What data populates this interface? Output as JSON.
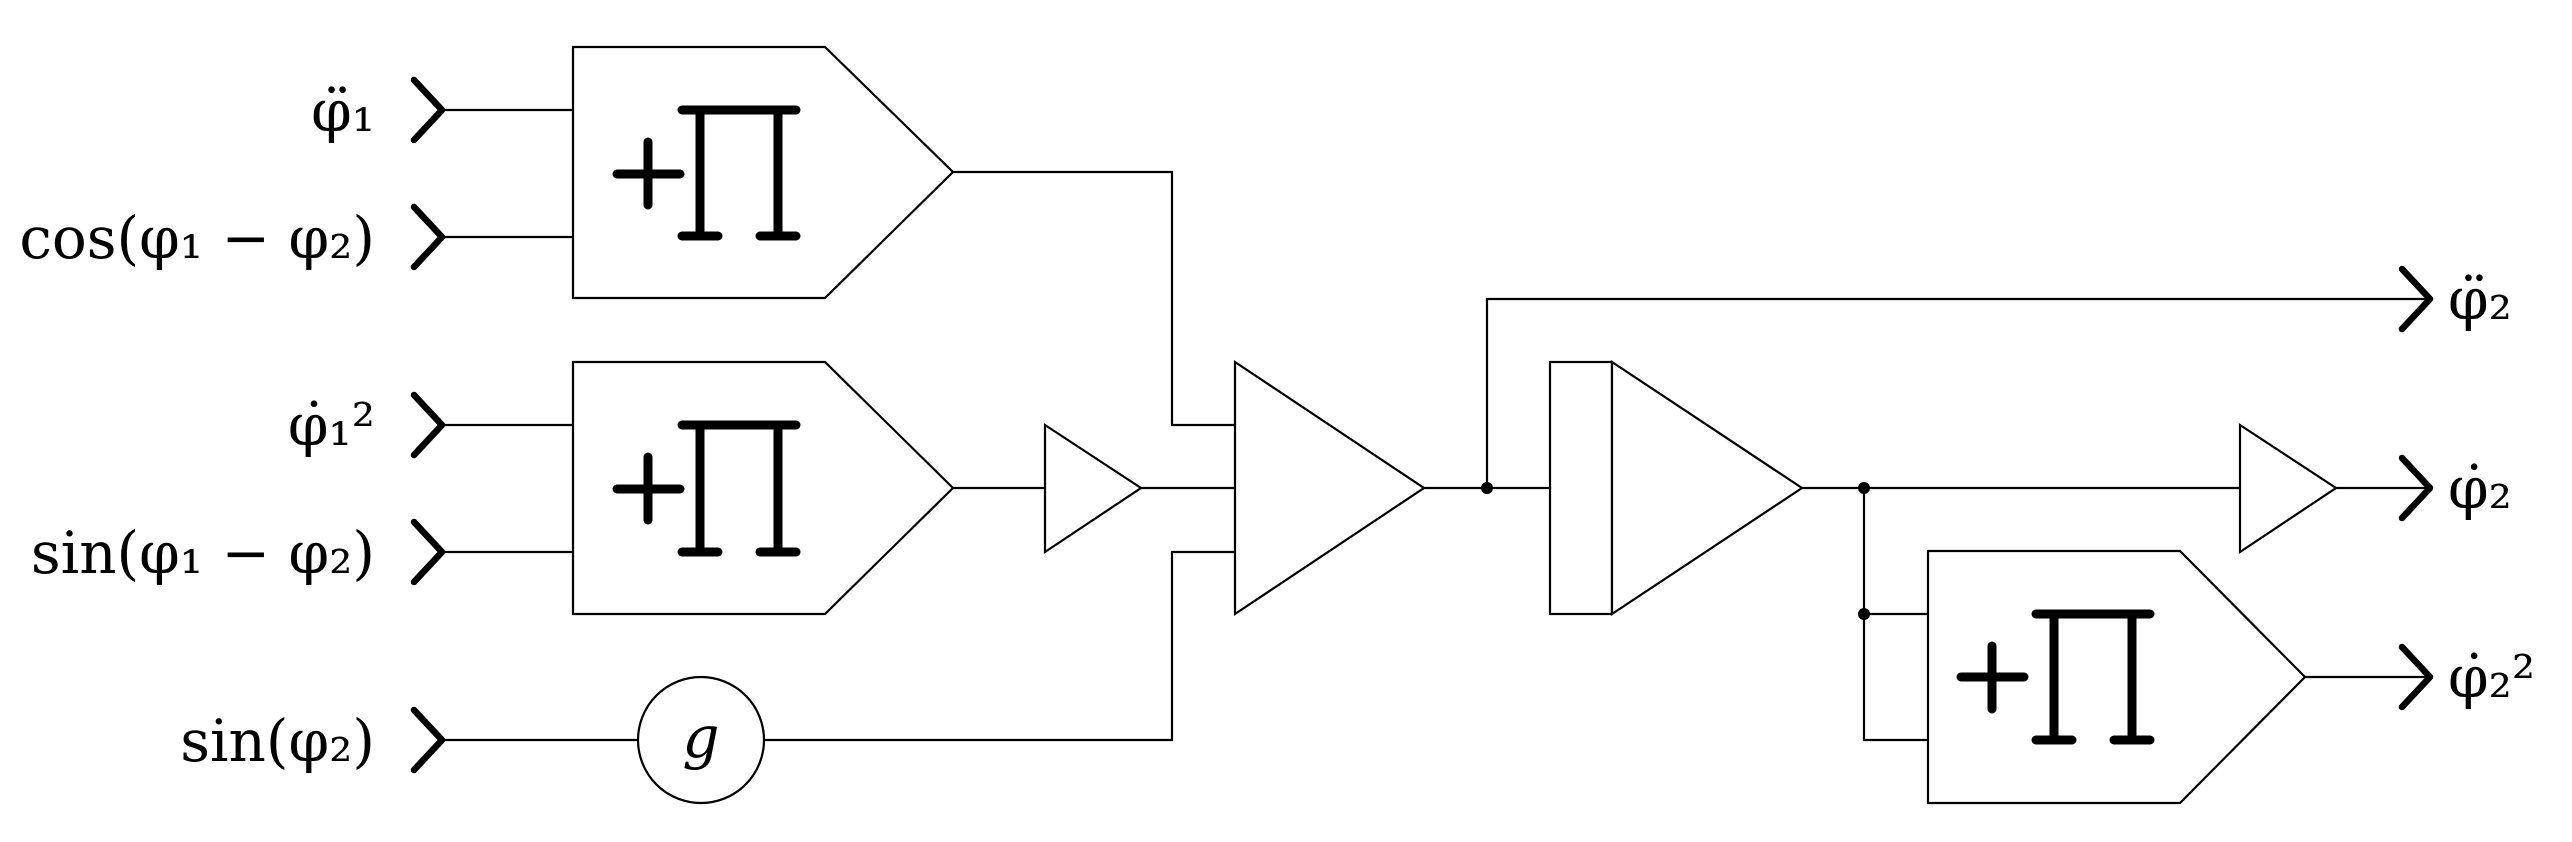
{
  "inputs": [
    {
      "label": "φ̈₁"
    },
    {
      "label": "cos(φ₁ − φ₂)"
    },
    {
      "label": "φ̇₁²"
    },
    {
      "label": "sin(φ₁ − φ₂)"
    },
    {
      "label": "sin(φ₂)"
    }
  ],
  "outputs": [
    {
      "label": "φ̈₂"
    },
    {
      "label": "φ̇₂"
    },
    {
      "label": "φ̇₂²"
    }
  ],
  "gain_block": {
    "label": "g"
  },
  "blocks": {
    "product_1": {
      "type": "product",
      "icon": "plus-pi-product-icon"
    },
    "product_2": {
      "type": "product",
      "icon": "plus-pi-product-icon"
    },
    "product_3": {
      "type": "product",
      "icon": "plus-pi-product-icon"
    },
    "gain_small_1": {
      "type": "gain"
    },
    "sum_gain": {
      "type": "gain"
    },
    "integrator": {
      "type": "integrator"
    },
    "gain_small_2": {
      "type": "gain"
    }
  }
}
